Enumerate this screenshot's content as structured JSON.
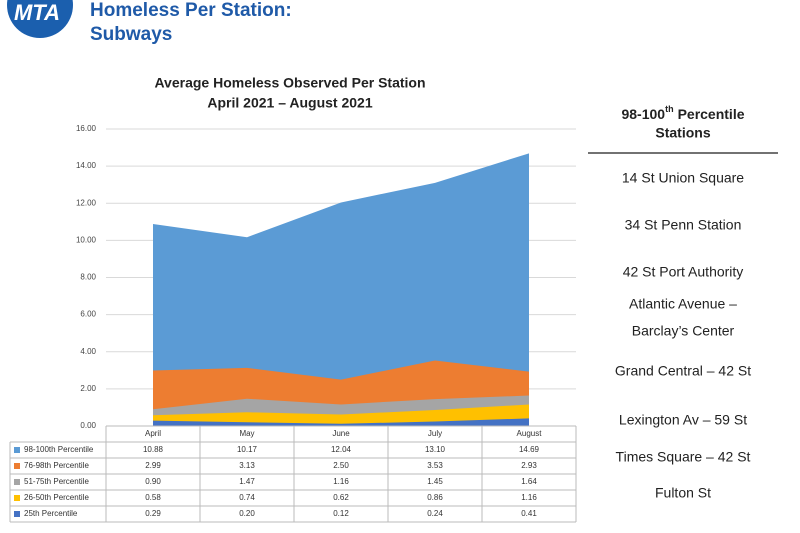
{
  "header": {
    "logo": "MTA",
    "title": "Homeless Per Station:",
    "subtitle": "Subways"
  },
  "chart_data": {
    "type": "area",
    "title": "Average Homeless Observed Per Station",
    "subtitle": "April 2021 – August 2021",
    "categories": [
      "April",
      "May",
      "June",
      "July",
      "August"
    ],
    "series": [
      {
        "name": "98-100th Percentile",
        "color": "#5b9bd5",
        "values": [
          10.88,
          10.17,
          12.04,
          13.1,
          14.69
        ],
        "value_labels": [
          "10.88",
          "10.17",
          "12.04",
          "13.10",
          "14.69"
        ]
      },
      {
        "name": "76-98th Percentile",
        "color": "#ed7d31",
        "values": [
          2.99,
          3.13,
          2.5,
          3.53,
          2.93
        ],
        "value_labels": [
          "2.99",
          "3.13",
          "2.50",
          "3.53",
          "2.93"
        ]
      },
      {
        "name": "51-75th Percentile",
        "color": "#a5a5a5",
        "values": [
          0.9,
          1.47,
          1.16,
          1.45,
          1.64
        ],
        "value_labels": [
          "0.90",
          "1.47",
          "1.16",
          "1.45",
          "1.64"
        ]
      },
      {
        "name": "26-50th Percentile",
        "color": "#ffc000",
        "values": [
          0.58,
          0.74,
          0.62,
          0.86,
          1.16
        ],
        "value_labels": [
          "0.58",
          "0.74",
          "0.62",
          "0.86",
          "1.16"
        ]
      },
      {
        "name": "25th Percentile",
        "color": "#4472c4",
        "values": [
          0.29,
          0.2,
          0.12,
          0.24,
          0.41
        ],
        "value_labels": [
          "0.29",
          "0.20",
          "0.12",
          "0.24",
          "0.41"
        ]
      }
    ],
    "ylim": [
      0,
      16
    ],
    "yticks": [
      {
        "value": 0,
        "label": "0.00"
      },
      {
        "value": 2,
        "label": "2.00"
      },
      {
        "value": 4,
        "label": "4.00"
      },
      {
        "value": 6,
        "label": "6.00"
      },
      {
        "value": 8,
        "label": "8.00"
      },
      {
        "value": 10,
        "label": "10.00"
      },
      {
        "value": 12,
        "label": "12.00"
      },
      {
        "value": 14,
        "label": "14.00"
      },
      {
        "value": 16,
        "label": "16.00"
      }
    ],
    "grid": true
  },
  "sidebar": {
    "title_prefix": "98-100",
    "title_sup": "th",
    "title_rest": "Percentile",
    "title_line2": "Stations",
    "stations": [
      "14 St Union Square",
      "34 St Penn Station",
      "42 St Port Authority",
      [
        "Atlantic Avenue –",
        "Barclay’s Center"
      ],
      "Grand Central – 42 St",
      "Lexington Av – 59 St",
      "Times Square – 42 St",
      "Fulton St"
    ]
  }
}
